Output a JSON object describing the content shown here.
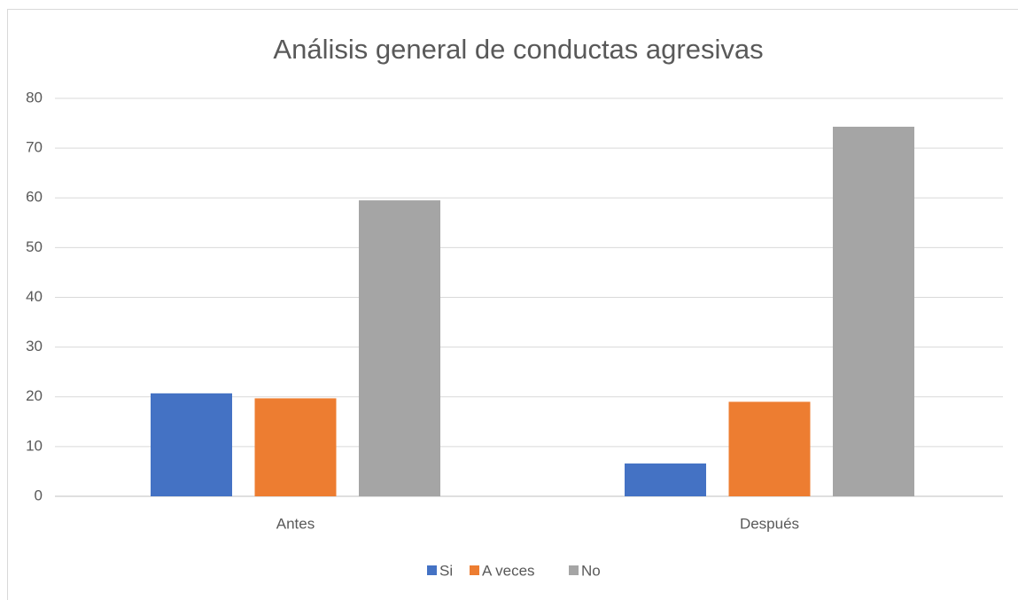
{
  "chart_data": {
    "type": "bar",
    "title": "Análisis general de conductas agresivas",
    "categories": [
      "Antes",
      "Después"
    ],
    "series": [
      {
        "name": "Si",
        "color": "#4472c4",
        "values": [
          20.7,
          6.6
        ]
      },
      {
        "name": "A veces",
        "color": "#ed7d31",
        "values": [
          19.7,
          19
        ]
      },
      {
        "name": "No",
        "color": "#a5a5a5",
        "values": [
          59.5,
          74.3
        ]
      }
    ],
    "ylim": [
      0,
      80
    ],
    "yticks": [
      0,
      10,
      20,
      30,
      40,
      50,
      60,
      70,
      80
    ],
    "grid": true,
    "legend": "bottom"
  }
}
